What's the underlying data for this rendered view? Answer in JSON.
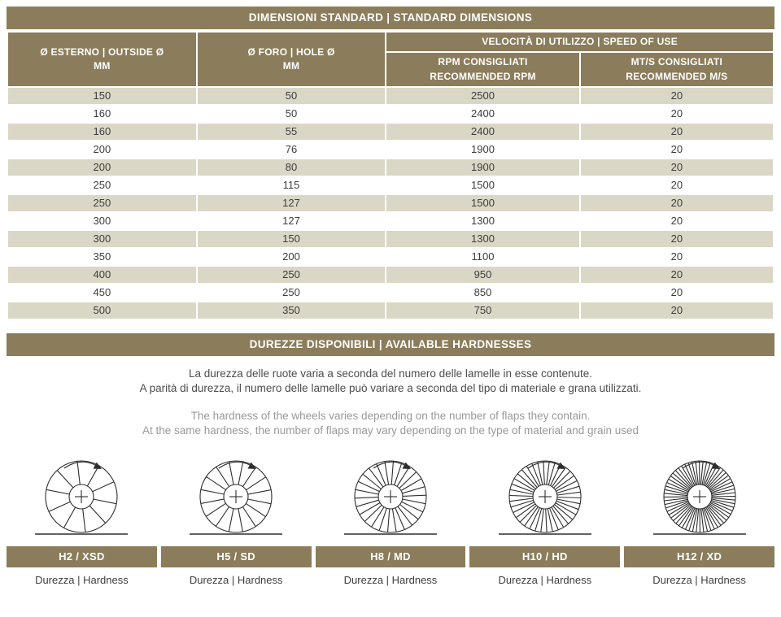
{
  "colors": {
    "accent": "#8b7d5b",
    "row_alt": "#dbd7c6"
  },
  "standard_dimensions": {
    "title": "DIMENSIONI STANDARD | STANDARD DIMENSIONS",
    "columns": {
      "outside": "Ø ESTERNO | OUTSIDE Ø\nMM",
      "hole": "Ø FORO | HOLE Ø\nMM",
      "speed_group": "VELOCITÀ DI UTILIZZO | SPEED OF USE",
      "rpm": "RPM CONSIGLIATI\nRECOMMENDED RPM",
      "ms": "MT/S CONSIGLIATI\nRECOMMENDED M/S"
    },
    "rows": [
      [
        "150",
        "50",
        "2500",
        "20"
      ],
      [
        "160",
        "50",
        "2400",
        "20"
      ],
      [
        "160",
        "55",
        "2400",
        "20"
      ],
      [
        "200",
        "76",
        "1900",
        "20"
      ],
      [
        "200",
        "80",
        "1900",
        "20"
      ],
      [
        "250",
        "115",
        "1500",
        "20"
      ],
      [
        "250",
        "127",
        "1500",
        "20"
      ],
      [
        "300",
        "127",
        "1300",
        "20"
      ],
      [
        "300",
        "150",
        "1300",
        "20"
      ],
      [
        "350",
        "200",
        "1100",
        "20"
      ],
      [
        "400",
        "250",
        "950",
        "20"
      ],
      [
        "450",
        "250",
        "850",
        "20"
      ],
      [
        "500",
        "350",
        "750",
        "20"
      ]
    ]
  },
  "hardness": {
    "title": "DUREZZE DISPONIBILI | AVAILABLE HARDNESSES",
    "description_it": [
      "La durezza delle ruote varia a seconda del numero delle lamelle in esse contenute.",
      "A parità di durezza, il numero delle lamelle può variare a seconda del tipo di materiale e grana utilizzati."
    ],
    "description_en": [
      "The hardness of the wheels varies depending on the number of flaps they contain.",
      "At the same hardness, the number of flaps may vary depending on the type of material and grain used"
    ],
    "items": [
      {
        "label": "H2 / XSD",
        "caption": "Durezza | Hardness",
        "flaps": 10
      },
      {
        "label": "H5 / SD",
        "caption": "Durezza | Hardness",
        "flaps": 16
      },
      {
        "label": "H8 / MD",
        "caption": "Durezza | Hardness",
        "flaps": 26
      },
      {
        "label": "H10 / HD",
        "caption": "Durezza | Hardness",
        "flaps": 38
      },
      {
        "label": "H12 / XD",
        "caption": "Durezza | Hardness",
        "flaps": 60
      }
    ]
  }
}
